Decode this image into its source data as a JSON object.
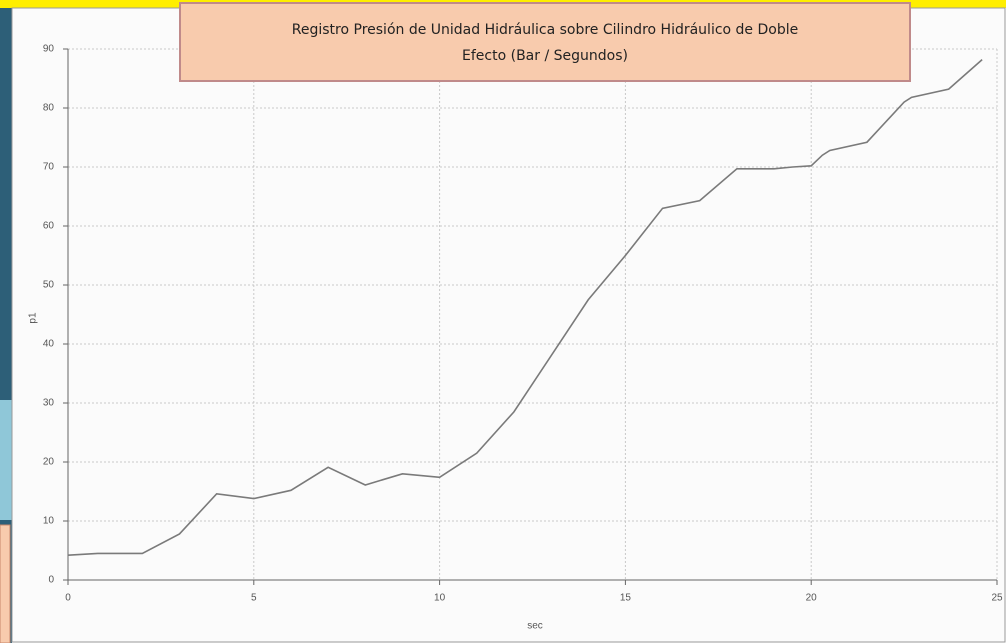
{
  "chart_data": {
    "type": "line",
    "title": [
      "Registro Presión de Unidad Hidráulica sobre Cilindro Hidráulico de Doble",
      "Efecto (Bar / Segundos)"
    ],
    "x_label": "sec",
    "y_label": "p1",
    "x": [
      0,
      0.8,
      2,
      3,
      4,
      5,
      6,
      7,
      8,
      9,
      10,
      11,
      12,
      13,
      14,
      15,
      16,
      17,
      18,
      19,
      19.5,
      20,
      20.3,
      20.5,
      21.5,
      22.5,
      22.7,
      23.7,
      24.6
    ],
    "values": [
      4.2,
      4.5,
      4.5,
      7.8,
      14.6,
      13.8,
      15.2,
      19.1,
      16.1,
      18,
      17.4,
      21.5,
      28.5,
      38,
      47.5,
      55,
      63,
      64.3,
      69.7,
      69.7,
      70,
      70.2,
      72,
      72.8,
      74.2,
      81,
      81.8,
      83.2,
      88.2
    ],
    "color": "#7a7a7a",
    "xlim": [
      0,
      25
    ],
    "xticks": [
      0,
      5,
      10,
      15,
      20,
      25
    ],
    "ylim": [
      0,
      90
    ],
    "yticks": [
      0,
      10,
      20,
      30,
      40,
      50,
      60,
      70,
      80,
      90
    ],
    "grid": true
  }
}
